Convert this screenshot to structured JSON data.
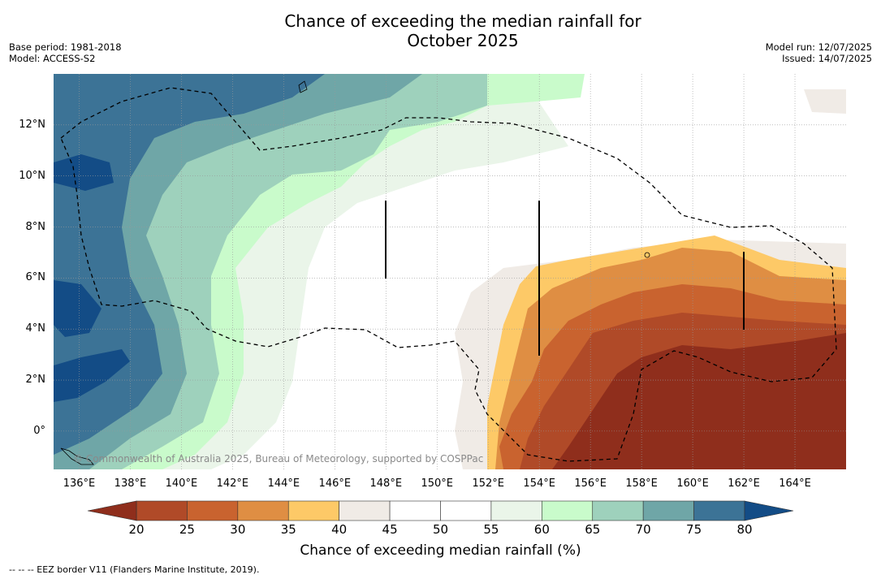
{
  "title_line1": "Chance of exceeding the median rainfall for",
  "title_line2": "October 2025",
  "meta_left": [
    "Base period: 1981-2018",
    "Model: ACCESS-S2"
  ],
  "meta_right": [
    "Model run: 12/07/2025",
    "Issued: 14/07/2025"
  ],
  "credit": "© Commonwealth of Australia 2025, Bureau of Meteorology, supported by COSPPac",
  "legend": {
    "title": "Chance of exceeding median rainfall (%)",
    "ticks": [
      "20",
      "25",
      "30",
      "35",
      "40",
      "45",
      "50",
      "55",
      "60",
      "65",
      "70",
      "75",
      "80"
    ],
    "colors": [
      "#8f2e1c",
      "#b04a28",
      "#c9632f",
      "#df8e43",
      "#fdc967",
      "#f0ebe6",
      "#ffffff",
      "#ffffff",
      "#eaf5e9",
      "#c9fbcb",
      "#9ed1bc",
      "#6fa6a7",
      "#3c7396",
      "#134c86"
    ],
    "low_color": "#8f2e1c",
    "high_color": "#134c86"
  },
  "axes": {
    "lon_labels": [
      "136°E",
      "138°E",
      "140°E",
      "142°E",
      "144°E",
      "146°E",
      "148°E",
      "150°E",
      "152°E",
      "154°E",
      "156°E",
      "158°E",
      "160°E",
      "162°E",
      "164°E"
    ],
    "lat_labels": [
      "12°N",
      "10°N",
      "8°N",
      "6°N",
      "4°N",
      "2°N",
      "0°"
    ],
    "lon_range": [
      135,
      166
    ],
    "lat_range": [
      -1.5,
      14
    ]
  },
  "footnote": "-- -- -- EEZ border V11 (Flanders Marine Institute, 2019)."
}
